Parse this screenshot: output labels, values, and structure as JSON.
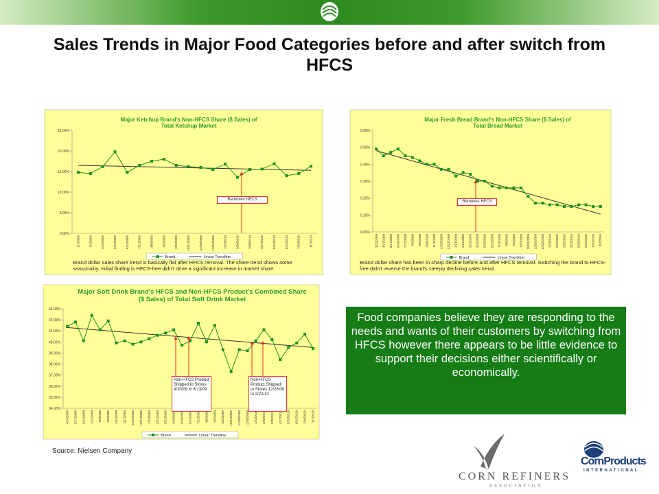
{
  "title": "Sales Trends in Major Food Categories before and after switch from HFCS",
  "callout": "Food companies believe they are responding to the needs  and wants of their customers by switching from HFCS however there appears to be little evidence to support their decisions either scientifically or economically.",
  "source": "Source: Nielsen Company",
  "logos": {
    "corn_refiners": "CORN REFINERS",
    "association": "ASSOCIATION",
    "corn_products": "CornProducts",
    "international": "INTERNATIONAL"
  },
  "chart_data": [
    {
      "type": "line",
      "title": "Major Ketchup Brand's Non-HFCS Share ($ Sales) of Total Ketchup Market",
      "categories": [
        "2/1/2009",
        "3/1/2009",
        "4/19/2009",
        "5/16/2009",
        "6/13/2009",
        "7/11/2009",
        "8/8/2009",
        "9/5/2009",
        "10/3/2009",
        "10/31/2009",
        "11/28/2009",
        "12/26/2009",
        "1/23/2010",
        "2/20/2010",
        "3/20/2010",
        "4/17/2010",
        "5/15/2010",
        "6/12/2010",
        "7/10/2010",
        "8/7/2010"
      ],
      "series": [
        {
          "name": "Brand",
          "color": "#1f8f1f",
          "values": [
            14.8,
            14.5,
            16.2,
            19.8,
            14.8,
            16.5,
            17.5,
            18.0,
            16.5,
            16.2,
            16.0,
            15.5,
            16.8,
            13.6,
            15.5,
            15.6,
            16.9,
            14.0,
            14.5,
            16.3
          ]
        }
      ],
      "trendline": {
        "name": "Linear Trendline",
        "color": "#333333",
        "start": 16.5,
        "end": 15.3
      },
      "ylim": [
        0,
        25
      ],
      "yticks": [
        {
          "value": 0,
          "label": "0.00%"
        },
        {
          "value": 5,
          "label": "5.00%"
        },
        {
          "value": 10,
          "label": "10.00%"
        },
        {
          "value": 15,
          "label": "15.00%"
        },
        {
          "value": 20,
          "label": "20.00%"
        },
        {
          "value": 25,
          "label": "25.00%"
        }
      ],
      "grid": false,
      "annotations": [
        "Removes HFCS"
      ],
      "caption": "Brand dollar sales share trend is basically flat after HFCS removal. The share trend shows some seasonality. Initial finding is HFCS-free didn't drive a significant increase in market share."
    },
    {
      "type": "line",
      "title": "Major Fresh Bread Brand's Non-HFCS Share ($ Sales) of Total Bread Market",
      "categories": [
        "3/22/2008",
        "4/19/2008",
        "5/17/2008",
        "6/14/2008",
        "7/12/2008",
        "8/9/2008",
        "9/6/2008",
        "10/4/2008",
        "11/1/2008",
        "11/29/2008",
        "12/27/2008",
        "1/24/2009",
        "2/21/2009",
        "3/21/2009",
        "4/18/2009",
        "5/16/2009",
        "6/13/2009",
        "7/11/2009",
        "8/8/2009",
        "9/5/2009",
        "10/3/2009",
        "10/31/2009",
        "11/28/2009",
        "12/26/2009",
        "1/23/2010",
        "2/20/2010",
        "3/20/2010",
        "4/17/2010",
        "5/15/2010",
        "6/12/2010",
        "7/10/2010",
        "8/7/2010"
      ],
      "series": [
        {
          "name": "Brand",
          "color": "#1f8f1f",
          "values": [
            0.49,
            0.45,
            0.47,
            0.49,
            0.45,
            0.44,
            0.42,
            0.4,
            0.4,
            0.37,
            0.37,
            0.33,
            0.35,
            0.34,
            0.3,
            0.3,
            0.27,
            0.26,
            0.26,
            0.26,
            0.26,
            0.21,
            0.17,
            0.17,
            0.16,
            0.16,
            0.15,
            0.15,
            0.16,
            0.16,
            0.15,
            0.15
          ]
        }
      ],
      "trendline": {
        "name": "Linear Trendline",
        "color": "#333333",
        "start": 0.48,
        "end": 0.105
      },
      "ylim": [
        0,
        0.6
      ],
      "yticks": [
        {
          "value": 0,
          "label": "0.00%"
        },
        {
          "value": 0.1,
          "label": "0.10%"
        },
        {
          "value": 0.2,
          "label": "0.20%"
        },
        {
          "value": 0.3,
          "label": "0.30%"
        },
        {
          "value": 0.4,
          "label": "0.40%"
        },
        {
          "value": 0.5,
          "label": "0.50%"
        },
        {
          "value": 0.6,
          "label": "0.60%"
        }
      ],
      "grid": false,
      "annotations": [
        "Removes HFCS"
      ],
      "caption": "Brand dollar share has been in sharp decline before and after HFCS removal. Switching the brand to HFCS-free didn't reverse the brand's steeply declining sales trend."
    },
    {
      "type": "line",
      "title": "Major Soft Drink Brand's HFCS and Non-HFCS Product's Combined Share ($ Sales) of Total Soft Drink Market",
      "categories": [
        "4/19/2008",
        "5/17/2008",
        "6/14/2008",
        "7/12/2008",
        "8/9/2008",
        "9/6/2008",
        "10/4/2008",
        "11/1/2008",
        "11/29/2008",
        "12/27/2008",
        "1/24/2009",
        "2/21/2009",
        "3/21/2009",
        "4/18/2009",
        "5/16/2009",
        "6/13/2009",
        "7/11/2009",
        "8/8/2009",
        "9/5/2009",
        "10/3/2009",
        "10/31/2009",
        "11/28/2009",
        "12/26/2009",
        "1/23/2010",
        "2/20/2010",
        "3/20/2010",
        "4/17/2010",
        "5/15/2010",
        "6/12/2010",
        "7/10/2010",
        "8/7/2010"
      ],
      "series": [
        {
          "name": "Brand",
          "color": "#1f8f1f",
          "values": [
            41.4,
            41.8,
            40.1,
            42.4,
            41.1,
            41.9,
            39.9,
            40.1,
            39.8,
            40.0,
            40.3,
            40.6,
            40.8,
            41.1,
            39.7,
            40.1,
            41.7,
            40.0,
            41.5,
            39.3,
            37.3,
            39.3,
            39.2,
            40.1,
            41.1,
            40.2,
            38.4,
            39.5,
            39.9,
            40.7,
            39.4
          ]
        }
      ],
      "trendline": {
        "name": "Linear Trendline",
        "color": "#333333",
        "start": 41.3,
        "end": 39.5
      },
      "ylim": [
        34,
        43
      ],
      "yticks": [
        {
          "value": 34,
          "label": "34.00%"
        },
        {
          "value": 35,
          "label": "35.00%"
        },
        {
          "value": 36,
          "label": "36.00%"
        },
        {
          "value": 37,
          "label": "37.00%"
        },
        {
          "value": 38,
          "label": "38.00%"
        },
        {
          "value": 39,
          "label": "39.00%"
        },
        {
          "value": 40,
          "label": "40.00%"
        },
        {
          "value": 41,
          "label": "41.00%"
        },
        {
          "value": 42,
          "label": "42.00%"
        },
        {
          "value": 43,
          "label": "43.00%"
        }
      ],
      "grid": false,
      "annotations": [
        "Non-HFCS Product Shipped to Stores 4/20/09 to 6/13/09",
        "Non-HFCS Product Shipped to Stores 12/28/09 to 2/22/10"
      ]
    }
  ]
}
